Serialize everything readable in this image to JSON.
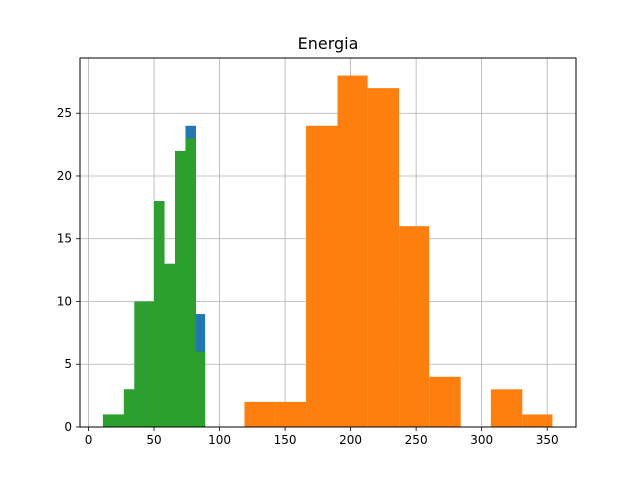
{
  "chart_data": {
    "type": "bar",
    "title": "Energia",
    "xlabel": "",
    "ylabel": "",
    "xlim": [
      -6.5,
      372
    ],
    "ylim": [
      0,
      29.4
    ],
    "grid": true,
    "xticks": [
      0,
      50,
      100,
      150,
      200,
      250,
      300,
      350
    ],
    "yticks": [
      0,
      5,
      10,
      15,
      20,
      25
    ],
    "series": [
      {
        "color": "#1f77b4",
        "bins": [
          {
            "x0": 11,
            "x1": 19,
            "count": 1
          },
          {
            "x0": 19,
            "x1": 27,
            "count": 1
          },
          {
            "x0": 27,
            "x1": 35,
            "count": 3
          },
          {
            "x0": 35,
            "x1": 43,
            "count": 10
          },
          {
            "x0": 43,
            "x1": 50,
            "count": 10
          },
          {
            "x0": 50,
            "x1": 58,
            "count": 18
          },
          {
            "x0": 58,
            "x1": 66,
            "count": 13
          },
          {
            "x0": 66,
            "x1": 74,
            "count": 16
          },
          {
            "x0": 74,
            "x1": 82,
            "count": 24
          },
          {
            "x0": 82,
            "x1": 89,
            "count": 9
          }
        ]
      },
      {
        "color": "#ff7f0e",
        "bins": [
          {
            "x0": 119,
            "x1": 143,
            "count": 2
          },
          {
            "x0": 143,
            "x1": 166,
            "count": 2
          },
          {
            "x0": 166,
            "x1": 190,
            "count": 24
          },
          {
            "x0": 190,
            "x1": 213,
            "count": 28
          },
          {
            "x0": 213,
            "x1": 237,
            "count": 27
          },
          {
            "x0": 237,
            "x1": 260,
            "count": 16
          },
          {
            "x0": 260,
            "x1": 284,
            "count": 4
          },
          {
            "x0": 284,
            "x1": 307,
            "count": 0
          },
          {
            "x0": 307,
            "x1": 331,
            "count": 3
          },
          {
            "x0": 331,
            "x1": 354,
            "count": 1
          }
        ]
      },
      {
        "color": "#2ca02c",
        "bins": [
          {
            "x0": 11,
            "x1": 19,
            "count": 1
          },
          {
            "x0": 19,
            "x1": 27,
            "count": 1
          },
          {
            "x0": 27,
            "x1": 35,
            "count": 3
          },
          {
            "x0": 35,
            "x1": 43,
            "count": 10
          },
          {
            "x0": 43,
            "x1": 50,
            "count": 10
          },
          {
            "x0": 50,
            "x1": 58,
            "count": 18
          },
          {
            "x0": 58,
            "x1": 66,
            "count": 13
          },
          {
            "x0": 66,
            "x1": 74,
            "count": 22
          },
          {
            "x0": 74,
            "x1": 82,
            "count": 23
          },
          {
            "x0": 82,
            "x1": 89,
            "count": 6
          }
        ]
      }
    ]
  }
}
